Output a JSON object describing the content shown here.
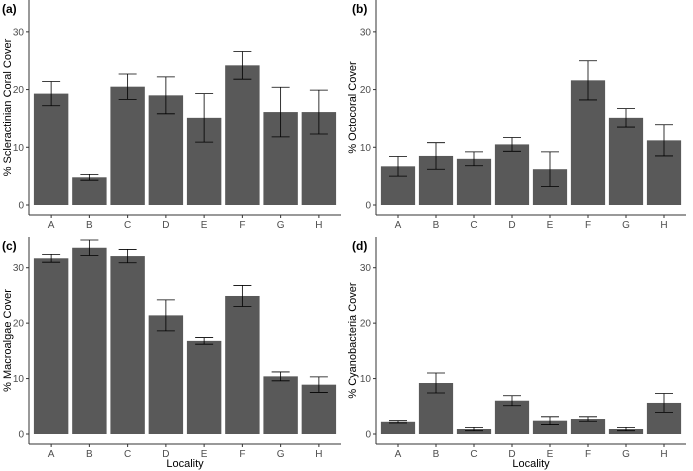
{
  "chart_data": [
    {
      "type": "bar",
      "panel": "(a)",
      "ylabel": "% Scleractinian Coral Cover",
      "xlabel": "",
      "categories": [
        "A",
        "B",
        "C",
        "D",
        "E",
        "F",
        "G",
        "H"
      ],
      "values": [
        19.3,
        4.8,
        20.5,
        19.0,
        15.1,
        24.2,
        16.1,
        16.1
      ],
      "error_low": [
        17.2,
        4.3,
        18.3,
        15.8,
        10.9,
        21.8,
        11.8,
        12.3
      ],
      "error_high": [
        21.4,
        5.3,
        22.7,
        22.2,
        19.3,
        26.6,
        20.4,
        19.9
      ],
      "ylim": [
        0,
        35
      ],
      "yticks": [
        0,
        10,
        20,
        30
      ],
      "grid": false,
      "bar_color": "#595959"
    },
    {
      "type": "bar",
      "panel": "(b)",
      "ylabel": "% Octocoral Cover",
      "xlabel": "",
      "categories": [
        "A",
        "B",
        "C",
        "D",
        "E",
        "F",
        "G",
        "H"
      ],
      "values": [
        6.7,
        8.5,
        8.0,
        10.5,
        6.2,
        21.6,
        15.1,
        11.2
      ],
      "error_low": [
        5.0,
        6.2,
        6.8,
        9.3,
        3.2,
        18.2,
        13.5,
        8.5
      ],
      "error_high": [
        8.4,
        10.8,
        9.2,
        11.7,
        9.2,
        25.0,
        16.7,
        13.9
      ],
      "ylim": [
        0,
        35
      ],
      "yticks": [
        0,
        10,
        20,
        30
      ],
      "grid": false,
      "bar_color": "#595959"
    },
    {
      "type": "bar",
      "panel": "(c)",
      "ylabel": "% Macroalgae Cover",
      "xlabel": "Locality",
      "categories": [
        "A",
        "B",
        "C",
        "D",
        "E",
        "F",
        "G",
        "H"
      ],
      "values": [
        31.7,
        33.6,
        32.1,
        21.4,
        16.8,
        24.9,
        10.4,
        8.9
      ],
      "error_low": [
        31.0,
        32.2,
        30.9,
        18.6,
        16.2,
        23.0,
        9.6,
        7.5
      ],
      "error_high": [
        32.4,
        35.0,
        33.3,
        24.2,
        17.4,
        26.8,
        11.2,
        10.3
      ],
      "ylim": [
        0,
        35
      ],
      "yticks": [
        0,
        10,
        20,
        30
      ],
      "grid": false,
      "bar_color": "#595959"
    },
    {
      "type": "bar",
      "panel": "(d)",
      "ylabel": "% Cyanobacteria Cover",
      "xlabel": "Locality",
      "categories": [
        "A",
        "B",
        "C",
        "D",
        "E",
        "F",
        "G",
        "H"
      ],
      "values": [
        2.2,
        9.2,
        0.9,
        6.0,
        2.4,
        2.7,
        0.9,
        5.6
      ],
      "error_low": [
        2.0,
        7.4,
        0.6,
        5.1,
        1.7,
        2.3,
        0.6,
        3.9
      ],
      "error_high": [
        2.4,
        11.0,
        1.2,
        6.9,
        3.1,
        3.1,
        1.2,
        7.3
      ],
      "ylim": [
        0,
        35
      ],
      "yticks": [
        0,
        10,
        20,
        30
      ],
      "grid": false,
      "bar_color": "#595959"
    }
  ]
}
